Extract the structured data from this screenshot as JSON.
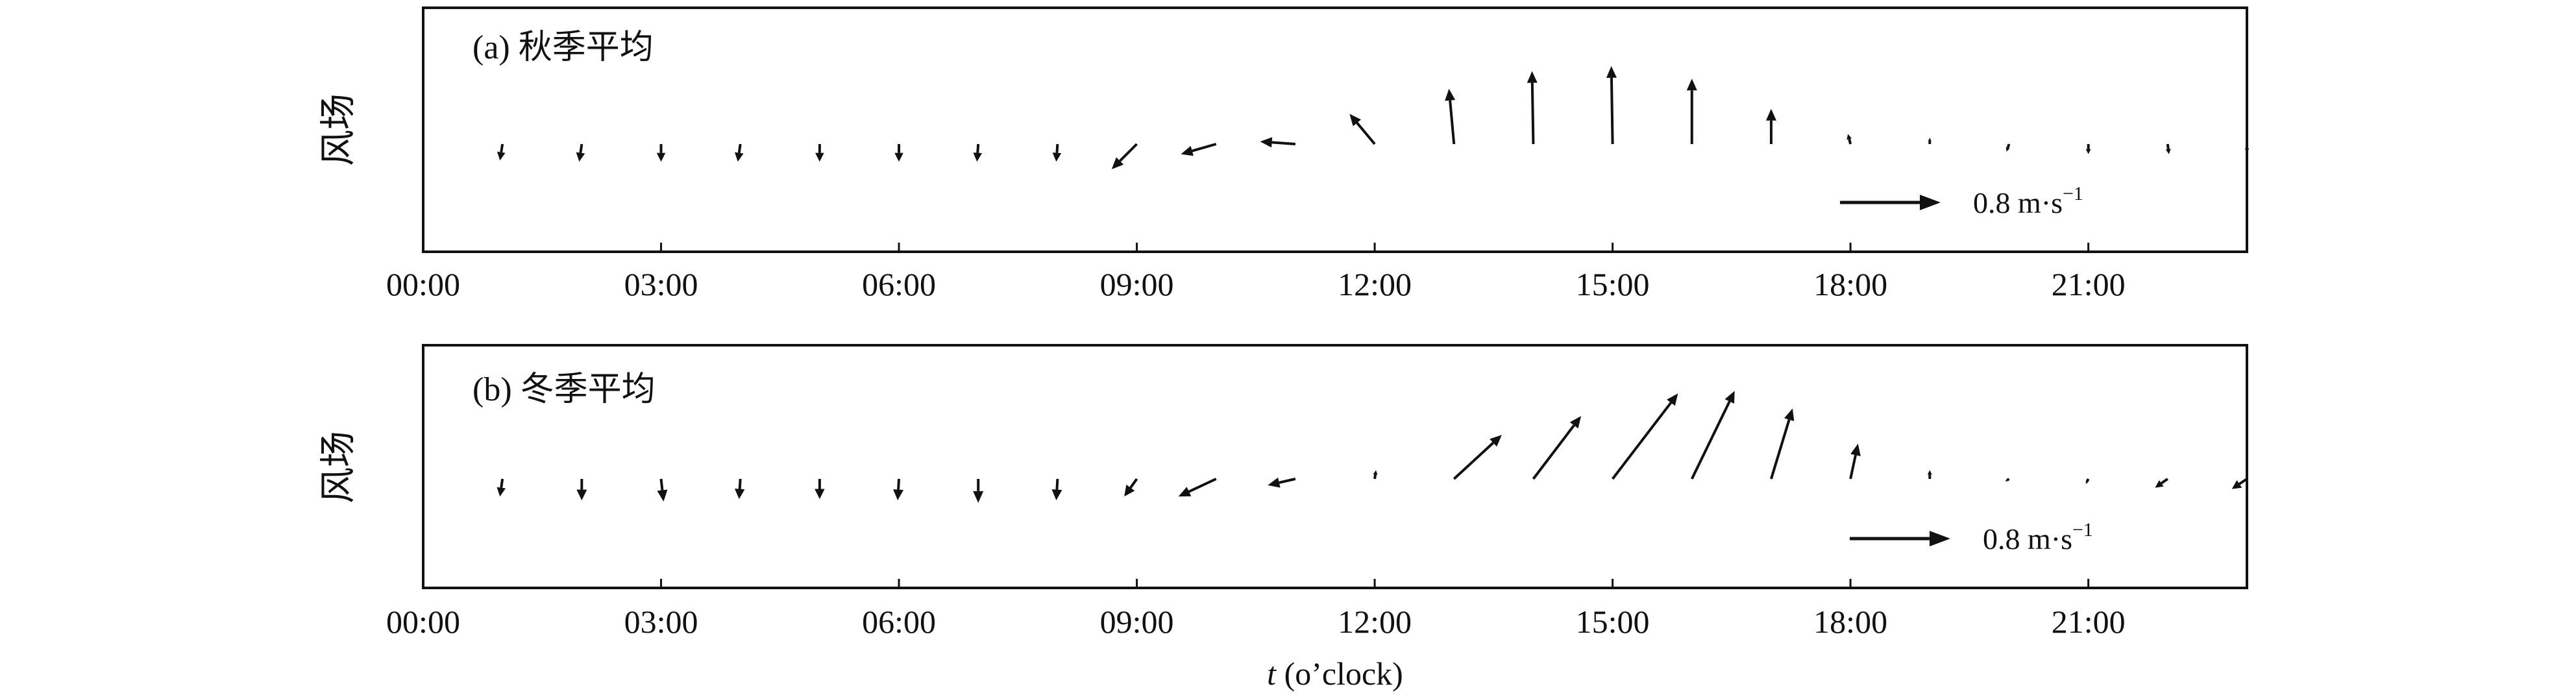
{
  "chart_data": [
    {
      "type": "quiver",
      "title": "(a) 秋季平均",
      "ylabel": "风场",
      "x_tick_labels": [
        "00:00",
        "03:00",
        "06:00",
        "09:00",
        "12:00",
        "15:00",
        "18:00",
        "21:00"
      ],
      "x_ticks_hours": [
        0,
        3,
        6,
        9,
        12,
        15,
        18,
        21
      ],
      "xlim_hours": [
        0,
        23
      ],
      "reference": {
        "u": 0.8,
        "label": "0.8 m·s",
        "unit_exponent": "−1"
      },
      "vectors": [
        {
          "hour": 1,
          "u": -0.02,
          "v": -0.13
        },
        {
          "hour": 2,
          "u": -0.02,
          "v": -0.14
        },
        {
          "hour": 3,
          "u": 0.0,
          "v": -0.14
        },
        {
          "hour": 4,
          "u": -0.02,
          "v": -0.14
        },
        {
          "hour": 5,
          "u": 0.0,
          "v": -0.14
        },
        {
          "hour": 6,
          "u": 0.0,
          "v": -0.14
        },
        {
          "hour": 7,
          "u": -0.01,
          "v": -0.14
        },
        {
          "hour": 8,
          "u": -0.01,
          "v": -0.14
        },
        {
          "hour": 9,
          "u": -0.2,
          "v": -0.2
        },
        {
          "hour": 10,
          "u": -0.28,
          "v": -0.08
        },
        {
          "hour": 11,
          "u": -0.28,
          "v": 0.02
        },
        {
          "hour": 12,
          "u": -0.2,
          "v": 0.24
        },
        {
          "hour": 13,
          "u": -0.04,
          "v": 0.44
        },
        {
          "hour": 14,
          "u": -0.01,
          "v": 0.58
        },
        {
          "hour": 15,
          "u": -0.01,
          "v": 0.62
        },
        {
          "hour": 16,
          "u": 0.0,
          "v": 0.52
        },
        {
          "hour": 17,
          "u": 0.0,
          "v": 0.28
        },
        {
          "hour": 18,
          "u": -0.02,
          "v": 0.08
        },
        {
          "hour": 19,
          "u": 0.0,
          "v": 0.05
        },
        {
          "hour": 20,
          "u": -0.02,
          "v": -0.06
        },
        {
          "hour": 21,
          "u": 0.0,
          "v": -0.08
        },
        {
          "hour": 22,
          "u": 0.01,
          "v": -0.08
        },
        {
          "hour": 23,
          "u": 0.0,
          "v": -0.07
        }
      ]
    },
    {
      "type": "quiver",
      "title": "(b) 冬季平均",
      "ylabel": "风场",
      "xlabel_italic": "t",
      "xlabel_rest": " (o’clock)",
      "x_tick_labels": [
        "00:00",
        "03:00",
        "06:00",
        "09:00",
        "12:00",
        "15:00",
        "18:00",
        "21:00"
      ],
      "x_ticks_hours": [
        0,
        3,
        6,
        9,
        12,
        15,
        18,
        21
      ],
      "xlim_hours": [
        0,
        23
      ],
      "reference": {
        "u": 0.8,
        "label": "0.8 m·s",
        "unit_exponent": "−1"
      },
      "vectors": [
        {
          "hour": 1,
          "u": -0.02,
          "v": -0.14
        },
        {
          "hour": 2,
          "u": 0.0,
          "v": -0.17
        },
        {
          "hour": 3,
          "u": 0.02,
          "v": -0.18
        },
        {
          "hour": 4,
          "u": -0.01,
          "v": -0.16
        },
        {
          "hour": 5,
          "u": 0.0,
          "v": -0.16
        },
        {
          "hour": 6,
          "u": -0.01,
          "v": -0.17
        },
        {
          "hour": 7,
          "u": 0.0,
          "v": -0.19
        },
        {
          "hour": 8,
          "u": -0.01,
          "v": -0.17
        },
        {
          "hour": 9,
          "u": -0.1,
          "v": -0.14
        },
        {
          "hour": 10,
          "u": -0.3,
          "v": -0.14
        },
        {
          "hour": 11,
          "u": -0.22,
          "v": -0.05
        },
        {
          "hour": 12,
          "u": 0.01,
          "v": 0.07
        },
        {
          "hour": 13,
          "u": 0.38,
          "v": 0.35
        },
        {
          "hour": 14,
          "u": 0.38,
          "v": 0.5
        },
        {
          "hour": 15,
          "u": 0.52,
          "v": 0.68
        },
        {
          "hour": 16,
          "u": 0.34,
          "v": 0.7
        },
        {
          "hour": 17,
          "u": 0.17,
          "v": 0.56
        },
        {
          "hour": 18,
          "u": 0.06,
          "v": 0.28
        },
        {
          "hour": 19,
          "u": 0.0,
          "v": 0.07
        },
        {
          "hour": 20,
          "u": -0.03,
          "v": -0.02
        },
        {
          "hour": 21,
          "u": -0.02,
          "v": -0.04
        },
        {
          "hour": 22,
          "u": -0.1,
          "v": -0.07
        },
        {
          "hour": 23,
          "u": -0.12,
          "v": -0.08
        }
      ]
    }
  ],
  "colors": {
    "arrow": "#111111",
    "axis": "#111111",
    "background": "#ffffff"
  }
}
